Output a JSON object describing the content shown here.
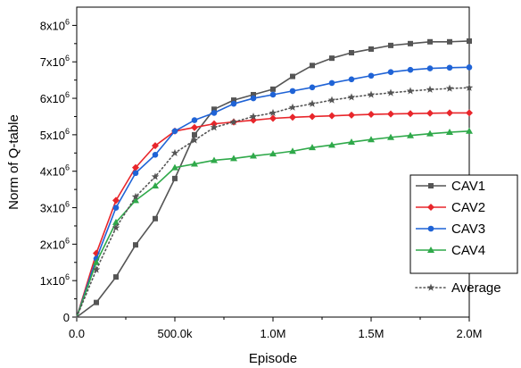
{
  "chart_data": {
    "type": "line",
    "title": "",
    "xlabel": "Episode",
    "ylabel": "Norm of Q-table",
    "xlim": [
      0,
      2000000
    ],
    "ylim": [
      0,
      8500000
    ],
    "x_ticks": [
      0,
      500000,
      1000000,
      1500000,
      2000000
    ],
    "x_tick_labels": [
      "0.0",
      "500.0k",
      "1.0M",
      "1.5M",
      "2.0M"
    ],
    "y_ticks": [
      0,
      1000000,
      2000000,
      3000000,
      4000000,
      5000000,
      6000000,
      7000000,
      8000000
    ],
    "y_tick_labels": [
      {
        "mantissa": "0",
        "exp": ""
      },
      {
        "mantissa": "1x10",
        "exp": "6"
      },
      {
        "mantissa": "2x10",
        "exp": "6"
      },
      {
        "mantissa": "3x10",
        "exp": "6"
      },
      {
        "mantissa": "4x10",
        "exp": "6"
      },
      {
        "mantissa": "5x10",
        "exp": "6"
      },
      {
        "mantissa": "6x10",
        "exp": "6"
      },
      {
        "mantissa": "7x10",
        "exp": "6"
      },
      {
        "mantissa": "8x10",
        "exp": "6"
      }
    ],
    "grid": false,
    "legend_position": "bottom-right",
    "x": [
      0,
      100000,
      200000,
      300000,
      400000,
      500000,
      600000,
      700000,
      800000,
      900000,
      1000000,
      1100000,
      1200000,
      1300000,
      1400000,
      1500000,
      1600000,
      1700000,
      1800000,
      1900000,
      2000000
    ],
    "series": [
      {
        "name": "CAV1",
        "color": "#555555",
        "marker": "square",
        "dash": "solid",
        "values": [
          0,
          400000,
          1100000,
          1980000,
          2700000,
          3800000,
          5000000,
          5700000,
          5950000,
          6100000,
          6250000,
          6600000,
          6900000,
          7100000,
          7250000,
          7350000,
          7450000,
          7500000,
          7550000,
          7550000,
          7570000
        ]
      },
      {
        "name": "CAV2",
        "color": "#e8262b",
        "marker": "diamond",
        "dash": "solid",
        "values": [
          0,
          1750000,
          3200000,
          4100000,
          4700000,
          5100000,
          5200000,
          5300000,
          5350000,
          5400000,
          5450000,
          5480000,
          5500000,
          5520000,
          5540000,
          5560000,
          5570000,
          5580000,
          5590000,
          5600000,
          5600000
        ]
      },
      {
        "name": "CAV3",
        "color": "#1f63d6",
        "marker": "circle",
        "dash": "solid",
        "values": [
          0,
          1600000,
          3000000,
          3950000,
          4450000,
          5100000,
          5400000,
          5600000,
          5850000,
          6000000,
          6100000,
          6200000,
          6300000,
          6420000,
          6520000,
          6620000,
          6720000,
          6780000,
          6820000,
          6840000,
          6850000
        ]
      },
      {
        "name": "CAV4",
        "color": "#2fa94a",
        "marker": "triangle",
        "dash": "solid",
        "values": [
          0,
          1500000,
          2600000,
          3200000,
          3600000,
          4100000,
          4200000,
          4300000,
          4350000,
          4420000,
          4480000,
          4550000,
          4650000,
          4720000,
          4800000,
          4870000,
          4930000,
          4980000,
          5030000,
          5070000,
          5100000
        ]
      },
      {
        "name": "Average",
        "color": "#555555",
        "marker": "star",
        "dash": "dotted",
        "values": [
          0,
          1300000,
          2450000,
          3300000,
          3850000,
          4500000,
          4850000,
          5200000,
          5350000,
          5500000,
          5600000,
          5750000,
          5850000,
          5950000,
          6030000,
          6100000,
          6150000,
          6200000,
          6240000,
          6270000,
          6290000
        ]
      }
    ]
  }
}
